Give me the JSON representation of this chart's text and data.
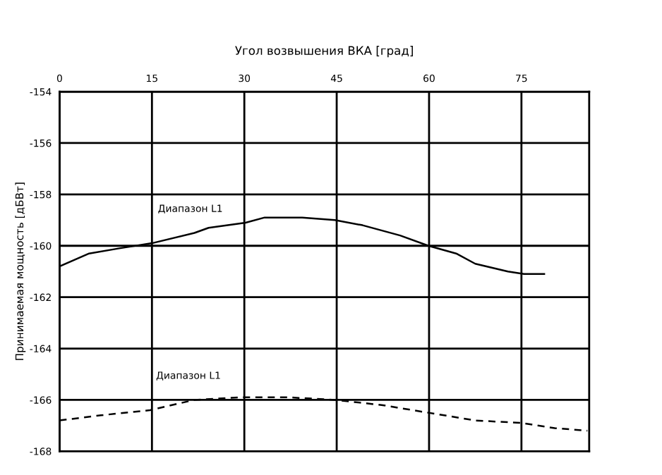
{
  "chart_data": {
    "type": "line",
    "xlabel": "Угол возвышения ВКА [град]",
    "ylabel": "Принимаемая мощность [дБВт]",
    "xlim": [
      0,
      86
    ],
    "xticks": [
      0,
      15,
      30,
      45,
      60,
      75
    ],
    "ylim": [
      -168,
      -154
    ],
    "yticks": [
      -154,
      -156,
      -158,
      -160,
      -162,
      -164,
      -166,
      -168
    ],
    "grid": true,
    "legend": false,
    "series": [
      {
        "name": "Диапазон L1",
        "color": "#000000",
        "line_style": "solid",
        "x": [
          0,
          4.8,
          9.7,
          15,
          21.9,
          24.2,
          30.2,
          33.3,
          39.4,
          44.7,
          49.2,
          55.3,
          59.9,
          64.4,
          67.5,
          72.8,
          75.4,
          78.7
        ],
        "values": [
          -160.8,
          -160.3,
          -160.1,
          -159.9,
          -159.5,
          -159.3,
          -159.1,
          -158.9,
          -158.9,
          -159.0,
          -159.2,
          -159.6,
          -160.0,
          -160.3,
          -160.7,
          -161.0,
          -161.1,
          -161.1
        ]
      },
      {
        "name": "Диапазон L1",
        "color": "#000000",
        "line_style": "dashed",
        "x": [
          0,
          6.7,
          14.7,
          21.9,
          29.5,
          37.1,
          44.7,
          52.3,
          59.9,
          67.5,
          75.1,
          80.4,
          85.7
        ],
        "values": [
          -166.8,
          -166.6,
          -166.4,
          -166.0,
          -165.9,
          -165.9,
          -166.0,
          -166.2,
          -166.5,
          -166.8,
          -166.9,
          -167.1,
          -167.2
        ]
      }
    ]
  }
}
